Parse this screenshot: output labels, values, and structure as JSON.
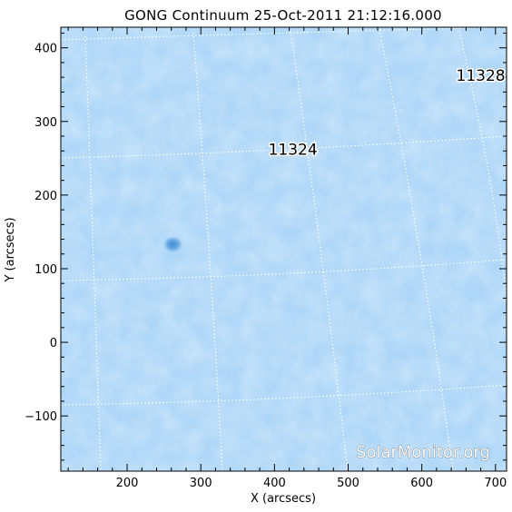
{
  "chart_data": {
    "type": "heatmap",
    "title": "GONG Continuum 25-Oct-2011 21:12:16.000",
    "xlabel": "X (arcsecs)",
    "ylabel": "Y (arcsecs)",
    "xlim": [
      110,
      715
    ],
    "ylim": [
      -175,
      428
    ],
    "x_ticks": [
      200,
      300,
      400,
      500,
      600,
      700
    ],
    "y_ticks": [
      -100,
      0,
      100,
      200,
      300,
      400
    ],
    "x_tick_labels": [
      "200",
      "300",
      "400",
      "500",
      "600",
      "700"
    ],
    "y_tick_labels": [
      "−100",
      "0",
      "100",
      "200",
      "300",
      "400"
    ],
    "grid": "heliographic dotted",
    "colormap": [
      "#aad4f6",
      "#c6e2fa"
    ],
    "regions": [
      {
        "label": "11324",
        "x": 425,
        "y": 255
      },
      {
        "label": "11328",
        "x": 680,
        "y": 355
      }
    ],
    "sunspot": {
      "x": 262,
      "y": 133
    },
    "watermark": "SolarMonitor.org"
  }
}
